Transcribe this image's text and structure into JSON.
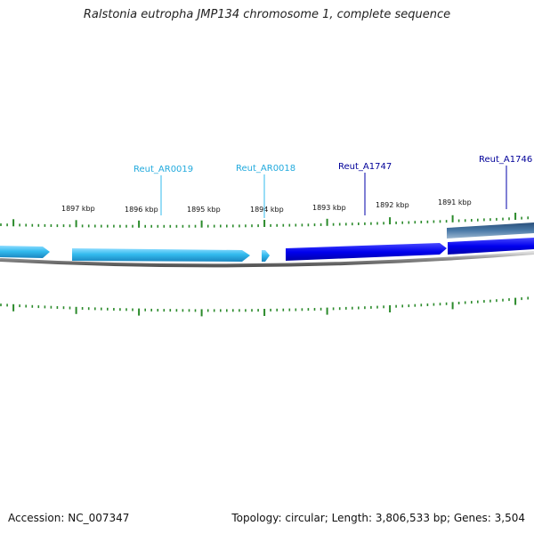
{
  "title": "Ralstonia eutropha JMP134 chromosome 1, complete sequence",
  "footer": {
    "accession": "Accession: NC_007347",
    "summary": "Topology: circular; Length: 3,806,533 bp; Genes: 3,504"
  },
  "colors": {
    "gene_light": "#33bbee",
    "gene_dark": "#0000ee",
    "gene_steel": "#4a7aa8",
    "backbone": "#888888",
    "tick": "#2a8a2a",
    "label_light": "#22aadd",
    "label_dark": "#000099"
  },
  "chart_data": {
    "type": "genome-map",
    "scale_labels": [
      "1897 kbp",
      "1896 kbp",
      "1895 kbp",
      "1894 kbp",
      "1893 kbp",
      "1892 kbp",
      "1891 kbp"
    ],
    "genes": [
      {
        "label": "Reut_AR0019",
        "color": "light"
      },
      {
        "label": "Reut_AR0018",
        "color": "light"
      },
      {
        "label": "Reut_A1747",
        "color": "dark"
      },
      {
        "label": "Reut_A1746",
        "color": "dark"
      }
    ]
  }
}
